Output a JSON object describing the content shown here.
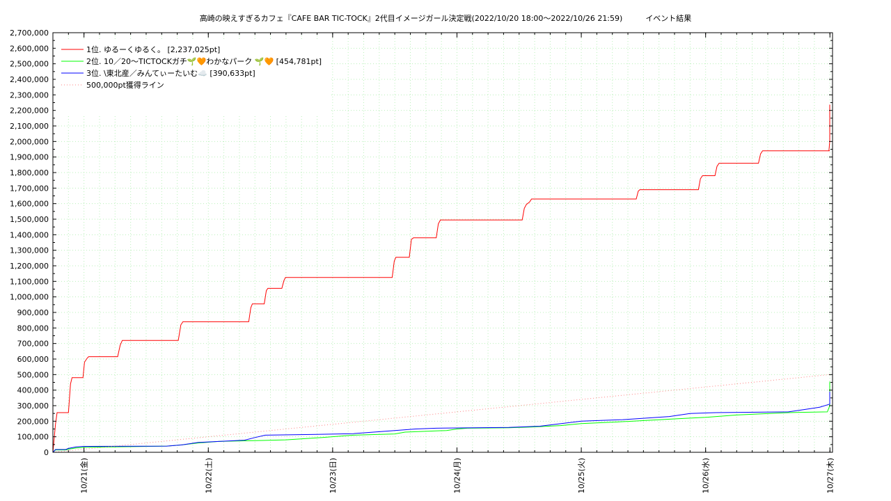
{
  "chart_data": {
    "type": "line",
    "title": "高崎の映えすぎるカフェ『CAFE BAR TIC-TOCK』2代目イメージガール決定戦(2022/10/20 18:00～2022/10/26 21:59)",
    "subtitle": "イベント結果",
    "xlabel": "",
    "ylabel": "",
    "ylim": [
      0,
      2700000
    ],
    "y_ticks": [
      "0",
      "100,000",
      "200,000",
      "300,000",
      "400,000",
      "500,000",
      "600,000",
      "700,000",
      "800,000",
      "900,000",
      "1,000,000",
      "1,100,000",
      "1,200,000",
      "1,300,000",
      "1,400,000",
      "1,500,000",
      "1,600,000",
      "1,700,000",
      "1,800,000",
      "1,900,000",
      "2,000,000",
      "2,100,000",
      "2,200,000",
      "2,300,000",
      "2,400,000",
      "2,500,000",
      "2,600,000",
      "2,700,000"
    ],
    "x_ticks": [
      {
        "label": "10/21(金)",
        "x": 24
      },
      {
        "label": "10/22(土)",
        "x": 48
      },
      {
        "label": "10/23(日)",
        "x": 72
      },
      {
        "label": "10/24(月)",
        "x": 96
      },
      {
        "label": "10/25(火)",
        "x": 120
      },
      {
        "label": "10/26(水)",
        "x": 144
      },
      {
        "label": "10/27(木)",
        "x": 168
      }
    ],
    "xlim": [
      18,
      168.5
    ],
    "x_unit": "hours since 2022/10/20 00:00",
    "grid": true,
    "legend_position": "top-left",
    "series": [
      {
        "name": "1位. ゆるーくゆるく。 [2,237,025pt]",
        "color": "#ff0000",
        "style": "solid",
        "points": [
          [
            18,
            0
          ],
          [
            18.5,
            180000
          ],
          [
            18.8,
            255000
          ],
          [
            21,
            255000
          ],
          [
            21.4,
            440000
          ],
          [
            21.7,
            480000
          ],
          [
            23.8,
            480000
          ],
          [
            24.1,
            580000
          ],
          [
            24.6,
            605000
          ],
          [
            24.9,
            615000
          ],
          [
            30.5,
            615000
          ],
          [
            31,
            690000
          ],
          [
            31.4,
            720000
          ],
          [
            42.2,
            720000
          ],
          [
            42.7,
            820000
          ],
          [
            43.1,
            840000
          ],
          [
            55.8,
            840000
          ],
          [
            56.2,
            930000
          ],
          [
            56.5,
            955000
          ],
          [
            58.8,
            955000
          ],
          [
            59.2,
            1040000
          ],
          [
            59.5,
            1055000
          ],
          [
            62.2,
            1055000
          ],
          [
            62.6,
            1105000
          ],
          [
            62.9,
            1125000
          ],
          [
            83.5,
            1125000
          ],
          [
            83.9,
            1230000
          ],
          [
            84.2,
            1255000
          ],
          [
            86.8,
            1255000
          ],
          [
            87.2,
            1370000
          ],
          [
            87.6,
            1380000
          ],
          [
            92,
            1380000
          ],
          [
            92.4,
            1470000
          ],
          [
            92.8,
            1495000
          ],
          [
            108.6,
            1495000
          ],
          [
            109,
            1570000
          ],
          [
            109.4,
            1595000
          ],
          [
            110,
            1610000
          ],
          [
            110.4,
            1630000
          ],
          [
            130.6,
            1630000
          ],
          [
            131,
            1680000
          ],
          [
            131.3,
            1690000
          ],
          [
            142.6,
            1690000
          ],
          [
            143,
            1760000
          ],
          [
            143.4,
            1780000
          ],
          [
            145.8,
            1780000
          ],
          [
            146.2,
            1840000
          ],
          [
            146.6,
            1860000
          ],
          [
            154.2,
            1860000
          ],
          [
            154.6,
            1920000
          ],
          [
            155,
            1940000
          ],
          [
            168.5,
            1940000
          ]
        ],
        "tail": [
          [
            167.8,
            1940000
          ],
          [
            168.1,
            2000000
          ],
          [
            168.5,
            2030000
          ],
          [
            168.9,
            2235000
          ],
          [
            171,
            2237025
          ]
        ]
      },
      {
        "name": "2位. 10／20～TICTOCKガチ🌱🧡わかなパーク 🌱🧡 [454,781pt]",
        "color": "#00ff00",
        "style": "solid",
        "points": [
          [
            18,
            0
          ],
          [
            18.5,
            15000
          ],
          [
            20.5,
            15000
          ],
          [
            21,
            20000
          ],
          [
            22.5,
            28000
          ],
          [
            24,
            32000
          ],
          [
            40,
            40000
          ],
          [
            43,
            48000
          ],
          [
            46,
            60000
          ],
          [
            50,
            70000
          ],
          [
            55,
            74000
          ],
          [
            57,
            75000
          ],
          [
            63,
            80000
          ],
          [
            70,
            95000
          ],
          [
            76,
            110000
          ],
          [
            84,
            118000
          ],
          [
            86,
            130000
          ],
          [
            94,
            140000
          ],
          [
            96,
            150000
          ],
          [
            98,
            155000
          ],
          [
            106,
            158000
          ],
          [
            110,
            162000
          ],
          [
            116,
            172000
          ],
          [
            120,
            185000
          ],
          [
            130,
            200000
          ],
          [
            138,
            215000
          ],
          [
            144,
            225000
          ],
          [
            150,
            240000
          ],
          [
            160,
            255000
          ],
          [
            167.5,
            260000
          ],
          [
            168.2,
            300000
          ],
          [
            168.6,
            454781
          ],
          [
            171,
            454781
          ]
        ]
      },
      {
        "name": "3位. \\東北産／みんてぃーたいむ☁️ [390,633pt]",
        "color": "#0000ff",
        "style": "solid",
        "points": [
          [
            18,
            0
          ],
          [
            18.5,
            18000
          ],
          [
            20.5,
            18000
          ],
          [
            21,
            25000
          ],
          [
            22.5,
            35000
          ],
          [
            24,
            38000
          ],
          [
            40,
            40000
          ],
          [
            43,
            48000
          ],
          [
            46,
            63000
          ],
          [
            50,
            70000
          ],
          [
            55,
            78000
          ],
          [
            57,
            95000
          ],
          [
            59,
            110000
          ],
          [
            69,
            115000
          ],
          [
            76,
            120000
          ],
          [
            84,
            140000
          ],
          [
            88,
            150000
          ],
          [
            92,
            155000
          ],
          [
            106,
            160000
          ],
          [
            112,
            168000
          ],
          [
            120,
            200000
          ],
          [
            128,
            210000
          ],
          [
            137,
            230000
          ],
          [
            141,
            250000
          ],
          [
            146,
            255000
          ],
          [
            160,
            260000
          ],
          [
            163,
            275000
          ],
          [
            166,
            290000
          ],
          [
            168,
            310000
          ],
          [
            168.4,
            390633
          ],
          [
            171,
            390633
          ]
        ]
      },
      {
        "name": "500,000pt獲得ライン",
        "color": "#ff8080",
        "style": "dotted",
        "points": [
          [
            18,
            0
          ],
          [
            171,
            500000
          ]
        ]
      }
    ]
  }
}
